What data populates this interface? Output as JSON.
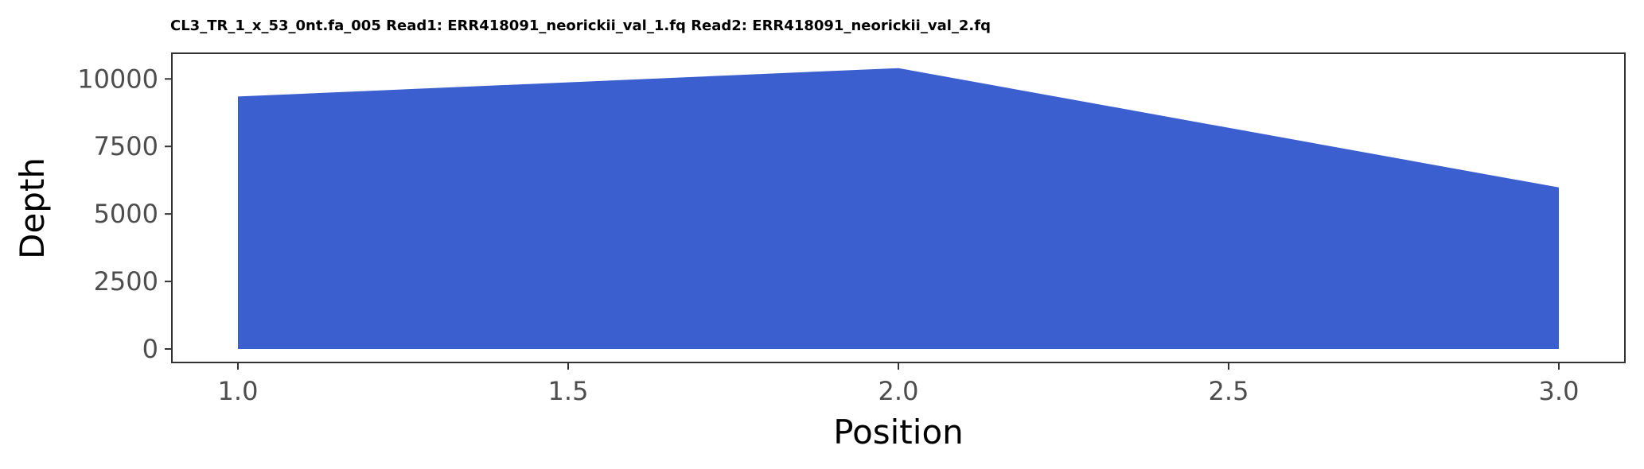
{
  "chart_data": {
    "type": "area",
    "title": "CL3_TR_1_x_53_0nt.fa_005 Read1: ERR418091_neorickii_val_1.fq Read2: ERR418091_neorickii_val_2.fq",
    "xlabel": "Position",
    "ylabel": "Depth",
    "x": [
      1.0,
      2.0,
      3.0
    ],
    "series": [
      {
        "values": [
          9350,
          10400,
          5980
        ]
      }
    ],
    "xlim": [
      0.9,
      3.1
    ],
    "ylim": [
      -500,
      10950
    ],
    "xticks": [
      1.0,
      1.5,
      2.0,
      2.5,
      3.0
    ],
    "xtick_labels": [
      "1.0",
      "1.5",
      "2.0",
      "2.5",
      "3.0"
    ],
    "yticks": [
      0,
      2500,
      5000,
      7500,
      10000
    ],
    "ytick_labels": [
      "0",
      "2500",
      "5000",
      "7500",
      "10000"
    ],
    "grid": false,
    "legend": "none",
    "colors": {
      "fill": "#3b5fce",
      "axis": "#333333",
      "tick_text": "#4d4d4d",
      "background": "#ffffff"
    }
  }
}
